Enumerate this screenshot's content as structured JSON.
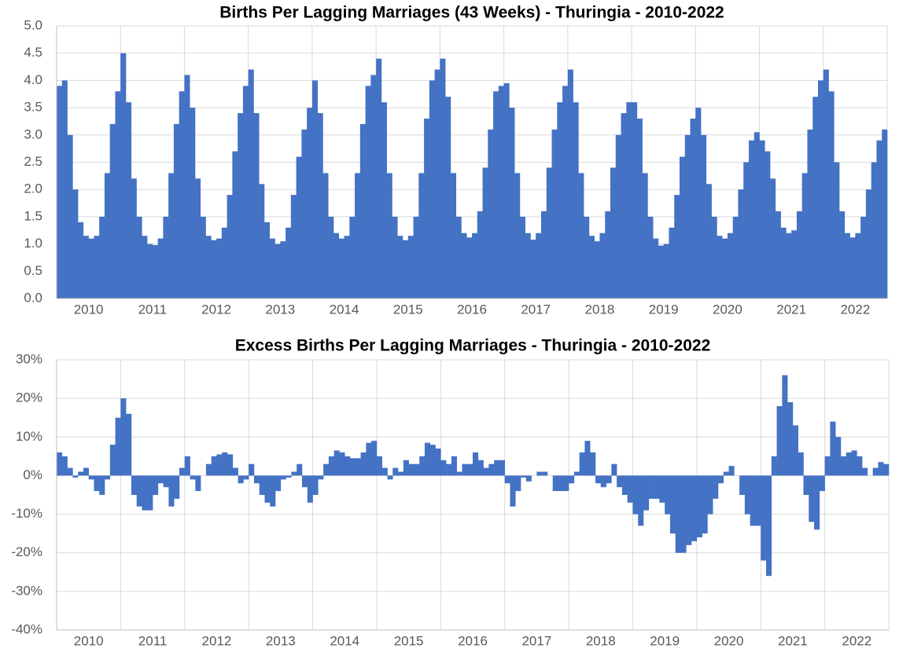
{
  "chart_data": [
    {
      "type": "bar",
      "title": "Births Per Lagging Marriages (43 Weeks) - Thuringia - 2010-2022",
      "categories": [
        "2010",
        "2011",
        "2012",
        "2013",
        "2014",
        "2015",
        "2016",
        "2017",
        "2018",
        "2019",
        "2020",
        "2021",
        "2022"
      ],
      "values": [
        [
          3.9,
          4.0,
          3.0,
          2.0,
          1.4,
          1.15,
          1.1,
          1.15,
          1.5,
          2.3,
          3.2,
          3.8
        ],
        [
          4.5,
          3.6,
          2.2,
          1.5,
          1.15,
          1.0,
          0.98,
          1.1,
          1.5,
          2.3,
          3.2,
          3.8
        ],
        [
          4.1,
          3.5,
          2.2,
          1.5,
          1.15,
          1.07,
          1.1,
          1.3,
          1.9,
          2.7,
          3.4,
          3.9
        ],
        [
          4.2,
          3.4,
          2.1,
          1.4,
          1.1,
          1.0,
          1.05,
          1.3,
          1.9,
          2.6,
          3.1,
          3.5
        ],
        [
          4.0,
          3.4,
          2.3,
          1.5,
          1.2,
          1.1,
          1.15,
          1.5,
          2.3,
          3.2,
          3.9,
          4.1
        ],
        [
          4.4,
          3.6,
          2.3,
          1.5,
          1.15,
          1.07,
          1.15,
          1.5,
          2.3,
          3.3,
          4.0,
          4.2
        ],
        [
          4.4,
          3.7,
          2.3,
          1.5,
          1.2,
          1.12,
          1.2,
          1.6,
          2.4,
          3.1,
          3.8,
          3.9
        ],
        [
          3.95,
          3.5,
          2.3,
          1.5,
          1.2,
          1.08,
          1.2,
          1.6,
          2.4,
          3.1,
          3.6,
          3.9
        ],
        [
          4.2,
          3.6,
          2.3,
          1.5,
          1.15,
          1.05,
          1.2,
          1.6,
          2.4,
          3.0,
          3.4,
          3.6
        ],
        [
          3.6,
          3.3,
          2.3,
          1.5,
          1.1,
          0.97,
          1.0,
          1.3,
          1.9,
          2.6,
          3.0,
          3.3
        ],
        [
          3.5,
          3.0,
          2.1,
          1.5,
          1.15,
          1.1,
          1.2,
          1.5,
          2.0,
          2.5,
          2.9,
          3.05
        ],
        [
          2.9,
          2.7,
          2.2,
          1.6,
          1.3,
          1.2,
          1.25,
          1.6,
          2.3,
          3.1,
          3.7,
          4.0
        ],
        [
          4.2,
          3.8,
          2.5,
          1.6,
          1.2,
          1.12,
          1.2,
          1.5,
          2.0,
          2.5,
          2.9,
          3.1
        ]
      ],
      "color": "#4472c4",
      "grid": true,
      "ylim": [
        0,
        5
      ],
      "yticks": [
        {
          "value": 0,
          "label": "0.0"
        },
        0.5,
        {
          "value": 1,
          "label": "1.0"
        },
        1.5,
        {
          "value": 2,
          "label": "2.0"
        },
        2.5,
        {
          "value": 3,
          "label": "3.0"
        },
        3.5,
        {
          "value": 4,
          "label": "4.0"
        },
        4.5,
        {
          "value": 5,
          "label": "5.0"
        }
      ]
    },
    {
      "type": "bar",
      "title": "Excess Births Per Lagging Marriages - Thuringia - 2010-2022",
      "categories": [
        "2010",
        "2011",
        "2012",
        "2013",
        "2014",
        "2015",
        "2016",
        "2017",
        "2018",
        "2019",
        "2020",
        "2021",
        "2022"
      ],
      "values": [
        [
          6,
          5,
          2,
          -0.5,
          1,
          2,
          -1,
          -4,
          -5,
          -1,
          8,
          15
        ],
        [
          20,
          16,
          -5,
          -8,
          -9,
          -9,
          -5,
          -2,
          -3,
          -8,
          -6,
          2
        ],
        [
          5,
          -1,
          -4,
          0,
          3,
          5,
          5.5,
          6,
          5.5,
          2,
          -2,
          -1
        ],
        [
          3,
          -2,
          -5,
          -7,
          -8,
          -4,
          -1,
          -0.5,
          1,
          3,
          -3,
          -7
        ],
        [
          -5,
          -1,
          3,
          5,
          6.5,
          6,
          5,
          4.5,
          4.5,
          6,
          8.5,
          9
        ],
        [
          5,
          2,
          -1,
          2,
          1,
          4,
          3,
          3,
          5,
          8.5,
          8,
          7
        ],
        [
          4,
          3,
          5,
          1,
          3,
          3,
          6,
          4,
          2,
          3,
          4,
          4
        ],
        [
          -2,
          -8,
          -4,
          -0.5,
          -1.5,
          0,
          1,
          1,
          0,
          -4,
          -4,
          -4
        ],
        [
          -2,
          1,
          6,
          9,
          6,
          -2,
          -3,
          -2,
          3,
          -3,
          -5,
          -7
        ],
        [
          -10,
          -13,
          -9,
          -6,
          -6,
          -7,
          -10,
          -15,
          -20,
          -20,
          -18,
          -17
        ],
        [
          -16,
          -15,
          -10,
          -6,
          -2,
          1,
          2.5,
          0,
          -5,
          -10,
          -13,
          -13
        ],
        [
          -22,
          -26,
          5,
          18,
          26,
          19,
          13,
          6,
          -5,
          -12,
          -14,
          -4
        ],
        [
          5,
          14,
          10,
          5,
          6,
          6.5,
          5,
          2,
          0,
          2,
          3.5,
          3
        ]
      ],
      "color": "#4472c4",
      "grid": true,
      "ylim": [
        -40,
        30
      ],
      "yticks": [
        {
          "value": -40,
          "label": "-40%"
        },
        {
          "value": -30,
          "label": "-30%"
        },
        {
          "value": -20,
          "label": "-20%"
        },
        {
          "value": -10,
          "label": "-10%"
        },
        {
          "value": 0,
          "label": "0%"
        },
        {
          "value": 10,
          "label": "10%"
        },
        {
          "value": 20,
          "label": "20%"
        },
        {
          "value": 30,
          "label": "30%"
        }
      ]
    }
  ]
}
